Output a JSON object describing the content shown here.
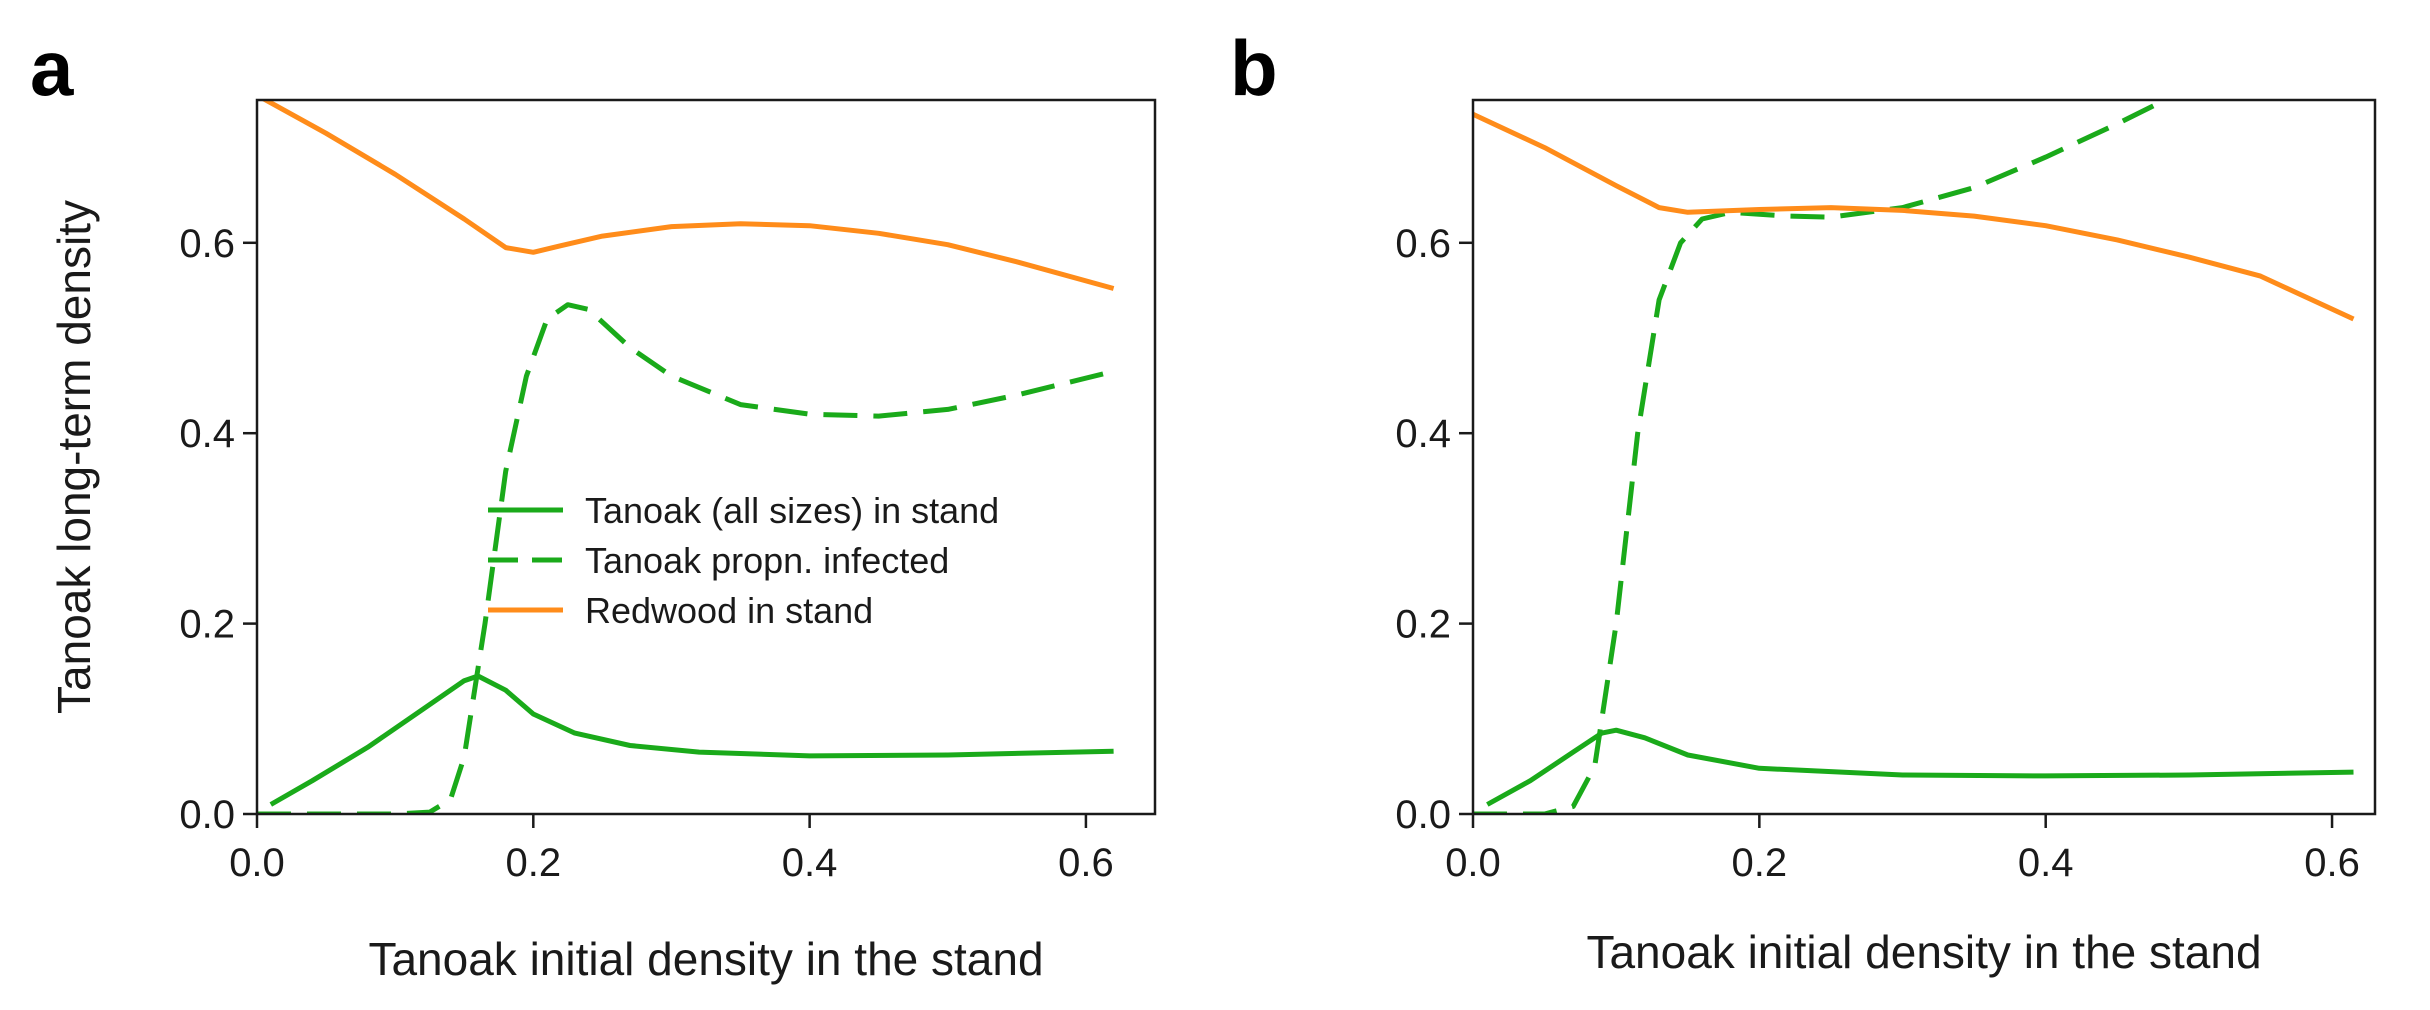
{
  "chart_data": [
    {
      "type": "line",
      "panel_label": "a",
      "xlabel": "Tanoak initial density in the stand",
      "ylabel": "Tanoak long-term density",
      "xlim": [
        0.0,
        0.65
      ],
      "ylim": [
        0.0,
        0.75
      ],
      "x_ticks": [
        "0.0",
        "0.2",
        "0.4",
        "0.6"
      ],
      "y_ticks": [
        "0.0",
        "0.2",
        "0.4",
        "0.6"
      ],
      "legend": {
        "position": "center-right",
        "entries": [
          {
            "label": "Tanoak (all sizes) in stand",
            "color": "#1aaa1a",
            "dash": "solid"
          },
          {
            "label": "Tanoak propn. infected",
            "color": "#1aaa1a",
            "dash": "dashed"
          },
          {
            "label": "Redwood in stand",
            "color": "#ff8c1a",
            "dash": "solid"
          }
        ]
      },
      "series": [
        {
          "name": "Tanoak (all sizes) in stand",
          "color": "#1aaa1a",
          "dash": "solid",
          "points": [
            [
              0.01,
              0.01
            ],
            [
              0.04,
              0.035
            ],
            [
              0.08,
              0.07
            ],
            [
              0.12,
              0.11
            ],
            [
              0.15,
              0.14
            ],
            [
              0.16,
              0.145
            ],
            [
              0.18,
              0.13
            ],
            [
              0.2,
              0.105
            ],
            [
              0.23,
              0.085
            ],
            [
              0.27,
              0.072
            ],
            [
              0.32,
              0.065
            ],
            [
              0.4,
              0.061
            ],
            [
              0.5,
              0.062
            ],
            [
              0.62,
              0.066
            ]
          ]
        },
        {
          "name": "Tanoak propn. infected",
          "color": "#1aaa1a",
          "dash": "dashed",
          "points": [
            [
              0.0,
              0.0
            ],
            [
              0.1,
              0.0
            ],
            [
              0.125,
              0.002
            ],
            [
              0.14,
              0.015
            ],
            [
              0.15,
              0.06
            ],
            [
              0.165,
              0.2
            ],
            [
              0.18,
              0.36
            ],
            [
              0.195,
              0.46
            ],
            [
              0.21,
              0.52
            ],
            [
              0.225,
              0.535
            ],
            [
              0.24,
              0.53
            ],
            [
              0.27,
              0.49
            ],
            [
              0.3,
              0.46
            ],
            [
              0.35,
              0.43
            ],
            [
              0.4,
              0.42
            ],
            [
              0.45,
              0.418
            ],
            [
              0.5,
              0.425
            ],
            [
              0.55,
              0.44
            ],
            [
              0.62,
              0.465
            ]
          ]
        },
        {
          "name": "Redwood in stand",
          "color": "#ff8c1a",
          "dash": "solid",
          "points": [
            [
              0.0,
              0.755
            ],
            [
              0.05,
              0.715
            ],
            [
              0.1,
              0.672
            ],
            [
              0.15,
              0.625
            ],
            [
              0.18,
              0.595
            ],
            [
              0.2,
              0.59
            ],
            [
              0.22,
              0.597
            ],
            [
              0.25,
              0.607
            ],
            [
              0.3,
              0.617
            ],
            [
              0.35,
              0.62
            ],
            [
              0.4,
              0.618
            ],
            [
              0.45,
              0.61
            ],
            [
              0.5,
              0.598
            ],
            [
              0.55,
              0.58
            ],
            [
              0.62,
              0.552
            ]
          ]
        }
      ]
    },
    {
      "type": "line",
      "panel_label": "b",
      "xlabel": "Tanoak initial density in the stand",
      "ylabel": "",
      "xlim": [
        0.0,
        0.63
      ],
      "ylim": [
        0.0,
        0.75
      ],
      "x_ticks": [
        "0.0",
        "0.2",
        "0.4",
        "0.6"
      ],
      "y_ticks": [
        "0.0",
        "0.2",
        "0.4",
        "0.6"
      ],
      "series": [
        {
          "name": "Tanoak (all sizes) in stand",
          "color": "#1aaa1a",
          "dash": "solid",
          "points": [
            [
              0.01,
              0.01
            ],
            [
              0.04,
              0.035
            ],
            [
              0.07,
              0.065
            ],
            [
              0.09,
              0.085
            ],
            [
              0.1,
              0.088
            ],
            [
              0.12,
              0.08
            ],
            [
              0.15,
              0.062
            ],
            [
              0.2,
              0.048
            ],
            [
              0.3,
              0.041
            ],
            [
              0.4,
              0.04
            ],
            [
              0.5,
              0.041
            ],
            [
              0.615,
              0.044
            ]
          ]
        },
        {
          "name": "Tanoak propn. infected",
          "color": "#1aaa1a",
          "dash": "dashed",
          "points": [
            [
              0.0,
              0.0
            ],
            [
              0.05,
              0.0
            ],
            [
              0.07,
              0.008
            ],
            [
              0.085,
              0.05
            ],
            [
              0.1,
              0.2
            ],
            [
              0.115,
              0.4
            ],
            [
              0.13,
              0.54
            ],
            [
              0.145,
              0.6
            ],
            [
              0.16,
              0.625
            ],
            [
              0.18,
              0.632
            ],
            [
              0.22,
              0.628
            ],
            [
              0.25,
              0.627
            ],
            [
              0.3,
              0.637
            ],
            [
              0.35,
              0.658
            ],
            [
              0.4,
              0.69
            ],
            [
              0.45,
              0.725
            ],
            [
              0.49,
              0.755
            ]
          ]
        },
        {
          "name": "Redwood in stand",
          "color": "#ff8c1a",
          "dash": "solid",
          "points": [
            [
              0.0,
              0.735
            ],
            [
              0.05,
              0.7
            ],
            [
              0.1,
              0.66
            ],
            [
              0.13,
              0.637
            ],
            [
              0.15,
              0.632
            ],
            [
              0.2,
              0.635
            ],
            [
              0.25,
              0.637
            ],
            [
              0.3,
              0.634
            ],
            [
              0.35,
              0.628
            ],
            [
              0.4,
              0.618
            ],
            [
              0.45,
              0.603
            ],
            [
              0.5,
              0.585
            ],
            [
              0.55,
              0.565
            ],
            [
              0.615,
              0.52
            ]
          ]
        }
      ]
    }
  ]
}
